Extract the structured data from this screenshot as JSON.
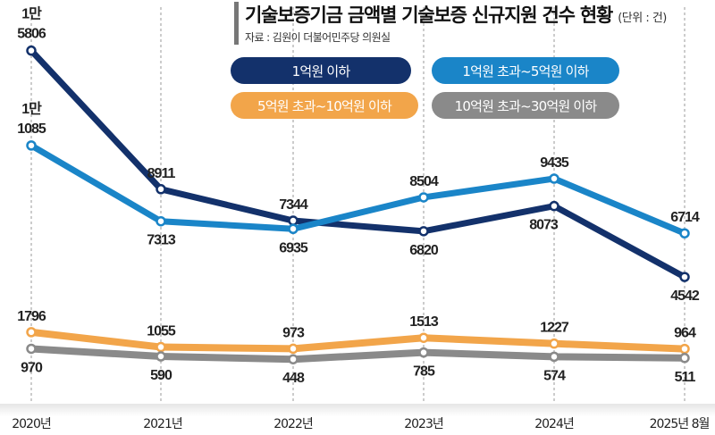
{
  "chart_data": {
    "type": "line",
    "title": "기술보증기금 금액별 기술보증 신규지원 건수 현황",
    "unit": "(단위 : 건)",
    "source": "자료 : 김원이 더불어민주당 의원실",
    "categories": [
      "2020년",
      "2021년",
      "2022년",
      "2023년",
      "2024년",
      "2025년 8월"
    ],
    "legend_placement": "top-right",
    "grid": "vertical dashed",
    "series": [
      {
        "name": "1억원 이하",
        "color": "#13316b",
        "values": [
          15806,
          8911,
          7344,
          6820,
          8073,
          4542
        ]
      },
      {
        "name": "1억원 초과~5억원 이하",
        "color": "#1a85c8",
        "values": [
          11085,
          7313,
          6935,
          8504,
          9435,
          6714
        ]
      },
      {
        "name": "5억원 초과~10억원 이하",
        "color": "#f2a54a",
        "values": [
          1796,
          1055,
          973,
          1513,
          1227,
          964
        ]
      },
      {
        "name": "10억원 초과~30억원 이하",
        "color": "#8a8a8a",
        "values": [
          970,
          590,
          448,
          785,
          574,
          511
        ]
      }
    ]
  }
}
